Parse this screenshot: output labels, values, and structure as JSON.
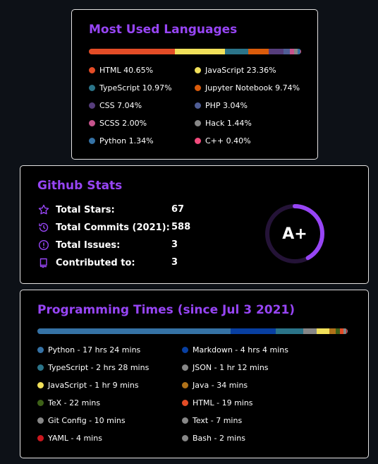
{
  "languages": {
    "title": "Most Used Languages",
    "items": [
      {
        "label": "HTML 40.65%",
        "color": "#e34c26",
        "pct": 40.65
      },
      {
        "label": "JavaScript 23.36%",
        "color": "#f1e05a",
        "pct": 23.36
      },
      {
        "label": "TypeScript 10.97%",
        "color": "#2b7489",
        "pct": 10.97
      },
      {
        "label": "Jupyter Notebook 9.74%",
        "color": "#da5b0b",
        "pct": 9.74
      },
      {
        "label": "CSS 7.04%",
        "color": "#563d7c",
        "pct": 7.04
      },
      {
        "label": "PHP 3.04%",
        "color": "#4f5d95",
        "pct": 3.04
      },
      {
        "label": "SCSS 2.00%",
        "color": "#c6538c",
        "pct": 2.0
      },
      {
        "label": "Hack 1.44%",
        "color": "#878787",
        "pct": 1.44
      },
      {
        "label": "Python 1.34%",
        "color": "#3572a5",
        "pct": 1.34
      },
      {
        "label": "C++ 0.40%",
        "color": "#f34b7d",
        "pct": 0.4
      }
    ]
  },
  "stats": {
    "title": "Github Stats",
    "rows": [
      {
        "label": "Total Stars:",
        "value": "67",
        "icon": "star-icon"
      },
      {
        "label": "Total Commits (2021):",
        "value": "588",
        "icon": "history-icon"
      },
      {
        "label": "Total Issues:",
        "value": "3",
        "icon": "issue-icon"
      },
      {
        "label": "Contributed to:",
        "value": "3",
        "icon": "repo-icon"
      }
    ],
    "rank": "A+",
    "rank_progress": 0.42,
    "accent": "#9745f5"
  },
  "times": {
    "title": "Programming Times (since Jul 3 2021)",
    "items": [
      {
        "label": "Python - 17 hrs 24 mins",
        "color": "#3572a5",
        "minutes": 1044
      },
      {
        "label": "Markdown - 4 hrs 4 mins",
        "color": "#083fa1",
        "minutes": 244
      },
      {
        "label": "TypeScript - 2 hrs 28 mins",
        "color": "#2b7489",
        "minutes": 148
      },
      {
        "label": "JSON - 1 hr 12 mins",
        "color": "#878787",
        "minutes": 72
      },
      {
        "label": "JavaScript - 1 hr 9 mins",
        "color": "#f1e05a",
        "minutes": 69
      },
      {
        "label": "Java - 34 mins",
        "color": "#b07219",
        "minutes": 34
      },
      {
        "label": "TeX - 22 mins",
        "color": "#3d6117",
        "minutes": 22
      },
      {
        "label": "HTML - 19 mins",
        "color": "#e34c26",
        "minutes": 19
      },
      {
        "label": "Git Config - 10 mins",
        "color": "#878787",
        "minutes": 10
      },
      {
        "label": "Text - 7 mins",
        "color": "#878787",
        "minutes": 7
      },
      {
        "label": "YAML - 4 mins",
        "color": "#cb171e",
        "minutes": 4
      },
      {
        "label": "Bash - 2 mins",
        "color": "#878787",
        "minutes": 2
      }
    ]
  }
}
